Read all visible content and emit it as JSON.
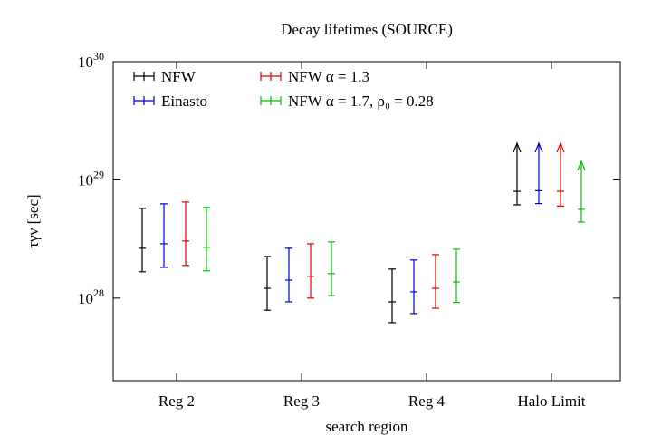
{
  "chart_data": {
    "type": "errorbar",
    "title": "Decay lifetimes (SOURCE)",
    "x_label": "search region",
    "y_label": "τγν [sec]",
    "categories": [
      "Reg 2",
      "Reg 3",
      "Reg 4",
      "Halo Limit"
    ],
    "log_y": true,
    "ylim": [
      2e+27,
      1e+30
    ],
    "yticks": [
      {
        "value": 1e+28,
        "label": "10^28"
      },
      {
        "value": 1e+29,
        "label": "10^29"
      },
      {
        "value": 1e+30,
        "label": "10^30"
      }
    ],
    "grid": false,
    "legend_position": "upper-left",
    "lower_limit_categories": [
      3
    ],
    "series": [
      {
        "name": "NFW",
        "color": "#000000",
        "values": [
          2.64e+28,
          1.21e+28,
          9.3e+27,
          8e+28
        ],
        "lower": [
          1.67e+28,
          7.9e+27,
          6.2e+27,
          6.15e+28
        ],
        "upper": [
          5.74e+28,
          2.25e+28,
          1.76e+28,
          2.04e+29
        ]
      },
      {
        "name": "Einasto",
        "color": "#0000cc",
        "values": [
          2.88e+28,
          1.42e+28,
          1.13e+28,
          8.1e+28
        ],
        "lower": [
          1.82e+28,
          9.3e+27,
          7.4e+27,
          6.3e+28
        ],
        "upper": [
          6.27e+28,
          2.64e+28,
          2.1e+28,
          2.04e+29
        ]
      },
      {
        "name": "NFW α = 1.3",
        "color": "#e00000",
        "values": [
          3.04e+28,
          1.53e+28,
          1.21e+28,
          8e+28
        ],
        "lower": [
          1.89e+28,
          1e+28,
          8.2e+27,
          6e+28
        ],
        "upper": [
          6.49e+28,
          2.88e+28,
          2.33e+28,
          2.04e+29
        ]
      },
      {
        "name": "NFW α = 1.7, ρ₀ = 0.28",
        "color": "#00c000",
        "values": [
          2.69e+28,
          1.61e+28,
          1.37e+28,
          5.64e+28
        ],
        "lower": [
          1.7e+28,
          1.05e+28,
          9.2e+27,
          4.4e+28
        ],
        "upper": [
          5.84e+28,
          2.99e+28,
          2.59e+28,
          1.44e+29
        ]
      }
    ]
  }
}
